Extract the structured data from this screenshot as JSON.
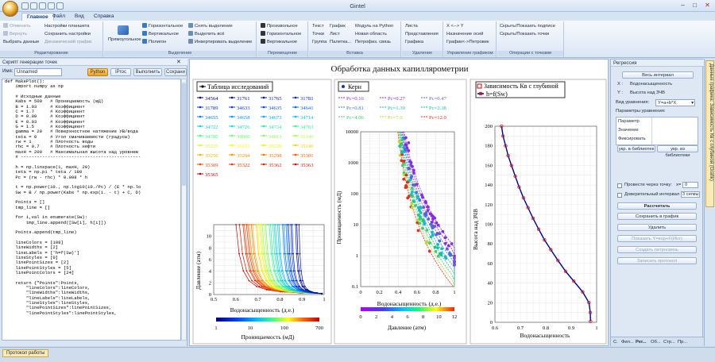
{
  "app": {
    "title": "Gintel"
  },
  "tabs": [
    "Главное",
    "Файл",
    "Вид",
    "Справка"
  ],
  "ribbon": {
    "col1": [
      "Отменить",
      "Вернуть",
      "Выбрать данные"
    ],
    "col2": [
      "Настройки планшета",
      "Сохранить настройки",
      "Динамический график"
    ],
    "group1": "Редактирование",
    "big1": "Прямоугольное",
    "col3": [
      "Горизонтальное",
      "Вертикальное",
      "Полигон"
    ],
    "col4": [
      "Снять выделение",
      "Выделить всё",
      "Инвертировать выделение"
    ],
    "group2": "Выделение",
    "col5": [
      "Произвольное",
      "Горизонтальное",
      "Вертикальное"
    ],
    "group3": "Перемещение",
    "col6": [
      "Текст",
      "Точки",
      "Группа"
    ],
    "col7": [
      "График",
      "Лист",
      "Палетка..."
    ],
    "col8": [
      "Модуль на Python",
      "Новая область",
      "Петрофиз. связь"
    ],
    "group4": "Вставка",
    "col9": [
      "Листа",
      "Представления",
      "Графика"
    ],
    "group5": "Удаление",
    "col10": [
      "X <--> Y",
      "Назначение осей",
      "График<->Петровек"
    ],
    "group6": "Управление графиком",
    "col11": [
      "Скрыть/Показать подписи",
      "Скрыть/Показать точки"
    ],
    "group7": "Операции с точками"
  },
  "script": {
    "title": "Скрипт генерации точек",
    "name_label": "Имя:",
    "name_value": "Unnamed",
    "buttons": [
      "Python",
      "IProc",
      "Выполнить",
      "Сохрани"
    ],
    "code": "def MakePlot():\n    import numpy as np\n\n    # Исходные данные\n    Kabs = 500   # Проницаемость (мД)\n    B = 1.03     # Коэффициент\n    C = 1.7      # Коэффициент\n    D = 0.09     # Коэффициент\n    E = 0.03     # Коэффициент\n    G = 1.5      # Коэффициент\n    gamma = 20   # Поверхностное натяжение УВ/вода\n    teta = 0     # Угол смачиваемости (градусы)\n    rw = 1       # Плотность воды\n    rhc = 0.7    # Плотность нефти\n    maxH = 200   # Максимальная высота над уровнем\n    # ---------------------------------------------\n\n    h = np.linspace(1, maxH, 20)\n    teta = np.pi * teta / 180\n    Pc = (rw - rhc) * 0.098 * h\n\n    t = np.power(10., np.log10(10./Pc) / (E * np.lo\n    Sw = B / np.power(Kabs * np.exp(1. - t) + C, D)\n\n    Points = []\n    tmp_line = []\n\n    for i,val in enumerate(Sw):\n        tmp_line.append([Sw[i], h[i]])\n\n    Points.append(tmp_line)\n\n    lineColors = [108]\n    lineWidths = [2]\n    lineLabels = ['h=f(Sw)']\n    lineStyles = [0]\n    linePointSizes = [2]\n    linePointStyles = [5]\n    linePointColors = [24]\n\n    return {\"Points\":Points,\n        \"lineColors\":lineColors,\n        \"lineWidths\":lineWidths,\n        \"lineLabels\":lineLabels,\n        \"lineStyles\":lineStyles,\n        \"linePointSizes\":linePointSizes,\n        \"linePointStyles\":linePointStyles,"
  },
  "bottom_tab": "Протокол работы",
  "plot": {
    "title": "Обработка данных капиллярометрии",
    "left": {
      "legend_title": "Таблица исследований",
      "xlabel": "Водонасыщенность (д.е.)",
      "ylabel": "Давление (атм)",
      "colorbar_label": "Проницаемость (мД)",
      "colorbar_ticks": [
        "1",
        "10",
        "100",
        "700"
      ],
      "samples": [
        "34564",
        "31761",
        "31765",
        "31781",
        "31789",
        "34633",
        "34635",
        "34641",
        "34655",
        "34658",
        "34673",
        "34714",
        "34722",
        "34726",
        "34734",
        "34763",
        "34780",
        "34800",
        "34813",
        "35146",
        "35225",
        "35231",
        "35239",
        "35240",
        "35256",
        "35294",
        "35298",
        "35301",
        "35309",
        "35322",
        "35362",
        "35363",
        "35365"
      ],
      "yticks": [
        "0",
        "2",
        "4",
        "6",
        "8",
        "10"
      ],
      "xticks": [
        "0.5",
        "0.6",
        "0.7",
        "0.8",
        "0.9",
        "1"
      ]
    },
    "mid": {
      "legend_title": "Керн",
      "pc_labels": [
        "Pc=0.16",
        "Pc=0.27",
        "Pc=0.47",
        "Pc=0.81",
        "Pc=1.39",
        "Pc=2.38",
        "Pc=4.06",
        "Pc=7.0",
        "Pc=12.0"
      ],
      "pc_colors": [
        "#8a2be2",
        "#8a2be2",
        "#6a5acd",
        "#3c78d8",
        "#1fb5c4",
        "#19c39c",
        "#49c96a",
        "#b7d93a",
        "#e03020"
      ],
      "xlabel": "Водонасыщенность (д.е.)",
      "ylabel": "Проницаемость (мД)",
      "colorbar_label": "Давление (атм)",
      "yticks": [
        "10000",
        "1000",
        "100",
        "10",
        "1",
        "0.1"
      ],
      "xticks": [
        "0",
        "0.2",
        "0.4",
        "0.6",
        "0.8",
        "1"
      ],
      "colorbar_ticks": [
        "0",
        "2",
        "4",
        "6",
        "8",
        "10",
        "12"
      ]
    },
    "right": {
      "legend_title": "Зависимость Кв с глубиной",
      "series": "h=f(Sw)",
      "xlabel": "Водонасыщенность",
      "ylabel": "Высота над ЗЧВ",
      "yticks": [
        "0",
        "20",
        "40",
        "60",
        "80",
        "100",
        "120",
        "140",
        "160",
        "180",
        "200"
      ],
      "xticks": [
        "0.6",
        "0.7",
        "0.8",
        "0.9",
        "1"
      ]
    }
  },
  "chart_data": [
    {
      "type": "line",
      "title": "",
      "xlabel": "Водонасыщенность (д.е.)",
      "ylabel": "Давление (атм)",
      "xlim": [
        0.5,
        1
      ],
      "ylim": [
        0,
        12
      ]
    },
    {
      "type": "scatter",
      "title": "",
      "xlabel": "Водонасыщенность (д.е.)",
      "ylabel": "Проницаемость (мД)",
      "xlim": [
        0,
        1
      ],
      "ylim": [
        0.1,
        10000
      ],
      "yscale": "log"
    },
    {
      "type": "line",
      "title": "",
      "xlabel": "Водонасыщенность",
      "ylabel": "Высота над ЗЧВ",
      "xlim": [
        0.6,
        1
      ],
      "ylim": [
        0,
        200
      ],
      "series": [
        {
          "name": "h=f(Sw)",
          "x": [
            0.626,
            0.632,
            0.642,
            0.652,
            0.665,
            0.68,
            0.695,
            0.712,
            0.73,
            0.75,
            0.772,
            0.795,
            0.82,
            0.848,
            0.878,
            0.91,
            0.945,
            0.97,
            0.975,
            0.976
          ],
          "y": [
            200,
            190,
            180,
            170,
            160,
            149,
            138,
            127,
            117,
            106,
            95,
            84,
            74,
            63,
            52,
            42,
            31,
            20,
            10,
            1
          ]
        }
      ]
    }
  ],
  "regression": {
    "title": "Регрессия",
    "all_interval": "Весь интервал",
    "x_label": "X :",
    "x_value": "Водонасыщенность",
    "y_label": "Y :",
    "y_value": "Высота над ЗЧВ",
    "eq_label": "Вид уравнения:",
    "eq_value": "Y=a+b*X",
    "params_label": "Параметры уравнения:",
    "param_rows": [
      "Параметр",
      "Значение",
      "Фиксировать"
    ],
    "lib_buttons": [
      "укр. в библиотек",
      "укр. из библиотеки"
    ],
    "through_point": "Провести через точку:",
    "x0_label": "x=",
    "x0_value": "0",
    "conf": "Доверительный интервал",
    "sigma": "3 сигмы",
    "calc": "Рассчитать",
    "save": "Сохранить в график",
    "delete": "Удалить",
    "disabled_buttons": [
      "Показать Y=exp+F(Инт)",
      "Создать петросвязь",
      "Записать протокол"
    ],
    "bottom_tabs": [
      "С.",
      "Фил...",
      "Рег...",
      "Об...",
      "Стр...",
      "Пр..."
    ]
  },
  "side_tab": "Данные графика: Зависимость Кв с глубиной (Grafik)"
}
